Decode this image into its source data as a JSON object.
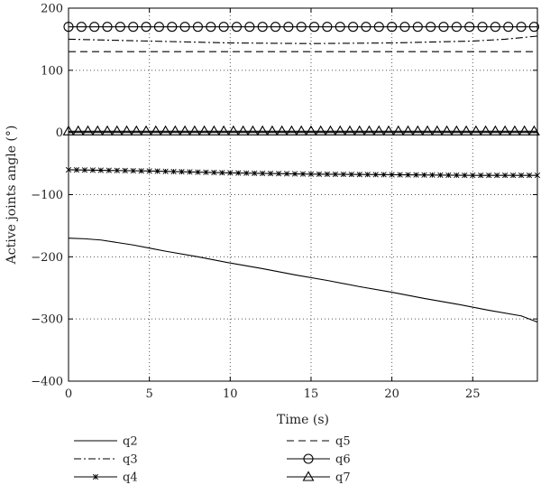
{
  "chart_data": {
    "type": "line",
    "xlabel": "Time (s)",
    "ylabel": "Active joints angle (°)",
    "xlim": [
      0,
      29
    ],
    "ylim": [
      -400,
      200
    ],
    "xticks": [
      0,
      5,
      10,
      15,
      20,
      25
    ],
    "yticks": [
      -400,
      -300,
      -200,
      -100,
      0,
      100,
      200
    ],
    "grid": true,
    "legend_position": "bottom",
    "series": [
      {
        "name": "q2",
        "style": "solid",
        "marker": "none",
        "x": [
          0,
          1,
          2,
          3,
          4,
          5,
          6,
          8,
          10,
          12,
          14,
          16,
          18,
          20,
          22,
          24,
          26,
          28,
          29
        ],
        "y": [
          -170,
          -171,
          -173,
          -177,
          -181,
          -186,
          -191,
          -200,
          -210,
          -219,
          -229,
          -238,
          -248,
          -257,
          -267,
          -276,
          -286,
          -295,
          -305
        ]
      },
      {
        "name": "q3",
        "style": "dashdot",
        "marker": "none",
        "x": [
          0,
          5,
          10,
          15,
          20,
          25,
          27,
          29
        ],
        "y": [
          150,
          147,
          144,
          143,
          144,
          147,
          150,
          155
        ]
      },
      {
        "name": "q4",
        "style": "solid",
        "marker": "star",
        "x": [
          0,
          5,
          10,
          15,
          20,
          25,
          29
        ],
        "y": [
          -60,
          -62,
          -65,
          -67,
          -68,
          -69,
          -69
        ]
      },
      {
        "name": "q5",
        "style": "dashed",
        "marker": "none",
        "x": [
          0,
          29
        ],
        "y": [
          130,
          130
        ]
      },
      {
        "name": "q6",
        "style": "solid",
        "marker": "circle",
        "x": [
          0,
          29
        ],
        "y": [
          170,
          170
        ]
      },
      {
        "name": "q7",
        "style": "solid",
        "marker": "triangle",
        "x": [
          0,
          29
        ],
        "y": [
          2,
          2
        ]
      }
    ]
  }
}
